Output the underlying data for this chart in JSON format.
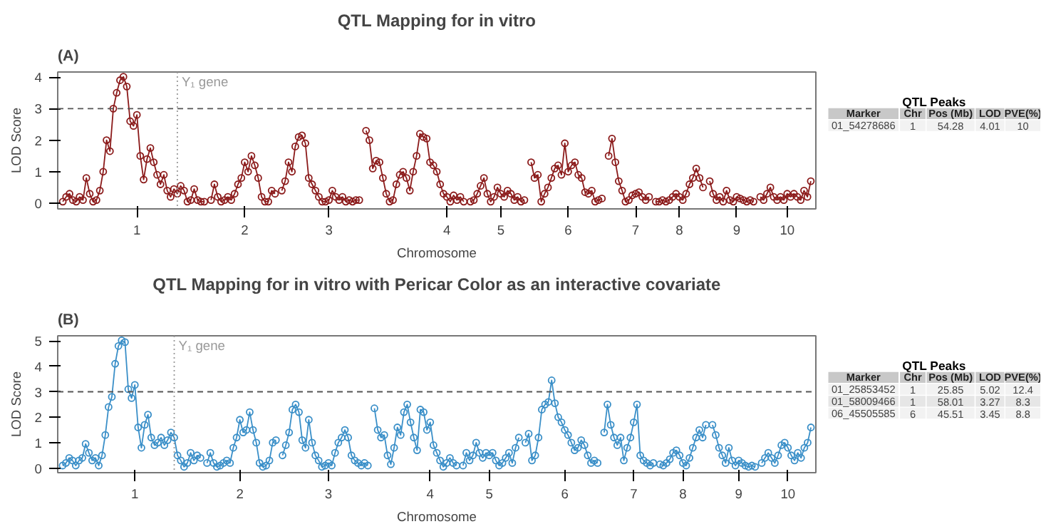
{
  "chart_data": [
    {
      "type": "line",
      "title": "QTL Mapping for in vitro",
      "annotations": [
        "(A)",
        "Y₁ gene"
      ],
      "xlabel": "Chromosome",
      "ylabel": "LOD Score",
      "marker": "circle",
      "line_style": "solid",
      "ylim": [
        -0.18,
        4.16
      ],
      "yticks": [
        0,
        1,
        2,
        3,
        4
      ],
      "categories": [
        null,
        null,
        null,
        null,
        null,
        null,
        null,
        null,
        null,
        null,
        null,
        null,
        null,
        null,
        null,
        null,
        null,
        null,
        null,
        null,
        null,
        null,
        "1",
        null,
        null,
        null,
        null,
        null,
        null,
        null,
        null,
        null,
        null,
        null,
        null,
        null,
        null,
        null,
        null,
        null,
        null,
        null,
        null,
        null,
        null,
        null,
        null,
        null,
        null,
        null,
        null,
        null,
        null,
        null,
        "2",
        null,
        null,
        null,
        null,
        null,
        null,
        null,
        null,
        null,
        null,
        null,
        null,
        null,
        null,
        null,
        null,
        null,
        null,
        null,
        null,
        null,
        null,
        null,
        null,
        "3",
        null,
        null,
        null,
        null,
        null,
        null,
        null,
        null,
        null,
        null,
        null,
        null,
        null,
        null,
        null,
        null,
        null,
        null,
        null,
        null,
        null,
        null,
        null,
        null,
        null,
        null,
        null,
        null,
        null,
        null,
        null,
        null,
        null,
        null,
        "4",
        null,
        null,
        null,
        null,
        null,
        null,
        null,
        null,
        null,
        null,
        null,
        null,
        null,
        null,
        null,
        "5",
        null,
        null,
        null,
        null,
        null,
        null,
        null,
        null,
        null,
        null,
        null,
        null,
        null,
        null,
        null,
        null,
        null,
        null,
        null,
        "6",
        null,
        null,
        null,
        null,
        null,
        null,
        null,
        null,
        null,
        null,
        null,
        null,
        null,
        null,
        null,
        null,
        null,
        null,
        null,
        "7",
        null,
        null,
        null,
        null,
        null,
        null,
        null,
        null,
        null,
        null,
        null,
        null,
        "8",
        null,
        null,
        null,
        null,
        null,
        null,
        null,
        null,
        null,
        null,
        null,
        null,
        null,
        null,
        null,
        null,
        "9",
        null,
        null,
        null,
        null,
        null,
        null,
        null,
        null,
        null,
        null,
        null,
        null,
        null,
        null,
        "10",
        null,
        null,
        null,
        null,
        null,
        null,
        null
      ],
      "ref_lines": [
        {
          "axis": "y",
          "value": 3,
          "label": null,
          "color": "#555555",
          "line_style": "dashed"
        }
      ],
      "series": [
        {
          "color": "#8b1a1a",
          "values": [
            0.05,
            0.2,
            0.3,
            0.1,
            0.05,
            0.2,
            0.1,
            0.8,
            0.3,
            0.05,
            0.1,
            0.4,
            1.0,
            2.0,
            1.65,
            3.0,
            3.5,
            3.9,
            4.01,
            3.7,
            2.6,
            2.45,
            2.8,
            1.5,
            0.75,
            1.4,
            1.75,
            1.3,
            0.9,
            0.6,
            0.9,
            0.4,
            0.2,
            0.45,
            0.3,
            0.55,
            0.4,
            0.05,
            0.1,
            0.45,
            0.1,
            0.05,
            0.05,
            null,
            0.1,
            0.6,
            0.2,
            0.05,
            0.1,
            0.2,
            0.1,
            0.3,
            0.6,
            0.8,
            1.3,
            1.0,
            1.5,
            1.2,
            0.8,
            0.2,
            0.05,
            0.05,
            0.4,
            0.3,
            null,
            0.4,
            0.7,
            1.3,
            1.0,
            1.8,
            2.1,
            2.15,
            1.9,
            0.8,
            0.6,
            0.4,
            0.2,
            0.05,
            0.05,
            0.1,
            0.4,
            0.2,
            0.1,
            0.2,
            0.05,
            0.1,
            0.05,
            0.1,
            0.1,
            null,
            2.3,
            2.0,
            1.1,
            1.35,
            1.3,
            0.8,
            0.3,
            0.05,
            0.1,
            0.6,
            0.9,
            1.0,
            0.8,
            0.4,
            1.0,
            1.5,
            2.2,
            2.1,
            2.05,
            1.3,
            1.2,
            1.0,
            0.6,
            0.3,
            0.2,
            0.05,
            0.25,
            0.1,
            0.2,
            0.05,
            null,
            0.05,
            0.1,
            0.3,
            0.55,
            0.8,
            0.3,
            0.05,
            0.2,
            0.5,
            0.3,
            0.2,
            0.4,
            0.3,
            0.1,
            0.2,
            0.05,
            0.1,
            null,
            1.3,
            0.8,
            0.9,
            0.05,
            0.3,
            0.5,
            0.8,
            1.1,
            1.2,
            0.9,
            1.9,
            1.0,
            1.2,
            1.3,
            0.9,
            0.8,
            0.35,
            0.3,
            0.4,
            0.05,
            0.1,
            0.15,
            null,
            1.5,
            2.05,
            1.3,
            0.7,
            0.4,
            0.05,
            0.1,
            0.25,
            0.3,
            0.35,
            0.2,
            0.1,
            0.2,
            null,
            0.05,
            0.05,
            0.1,
            0.05,
            0.1,
            0.2,
            0.3,
            0.2,
            0.1,
            0.3,
            0.6,
            0.8,
            1.1,
            0.8,
            0.5,
            null,
            0.7,
            0.3,
            0.1,
            0.2,
            0.05,
            0.4,
            0.1,
            0.05,
            0.2,
            0.15,
            0.1,
            0.05,
            0.1,
            0.05,
            null,
            0.2,
            0.1,
            0.3,
            0.5,
            0.2,
            0.1,
            0.2,
            0.1,
            0.3,
            0.2,
            0.3,
            0.2,
            0.1,
            0.4,
            0.2,
            0.7
          ]
        }
      ]
    },
    {
      "type": "other",
      "title": "QTL Peaks",
      "categories": [
        "Marker",
        "Chr",
        "Pos (Mb)",
        "LOD",
        "PVE(%)"
      ],
      "cell_labels": [
        [
          "01_54278686",
          "1",
          "54.28",
          "4.01",
          "10"
        ]
      ]
    },
    {
      "type": "line",
      "title": "QTL Mapping for in vitro with Pericar Color as an interactive covariate",
      "annotations": [
        "(B)",
        "Y₁ gene"
      ],
      "xlabel": "Chromosome",
      "ylabel": "LOD Score",
      "marker": "circle",
      "line_style": "solid",
      "ylim": [
        -0.18,
        5.2
      ],
      "yticks": [
        0,
        1,
        2,
        3,
        4,
        5
      ],
      "categories": [
        null,
        null,
        null,
        null,
        null,
        null,
        null,
        null,
        null,
        null,
        null,
        null,
        null,
        null,
        null,
        null,
        null,
        null,
        null,
        null,
        null,
        null,
        "1",
        null,
        null,
        null,
        null,
        null,
        null,
        null,
        null,
        null,
        null,
        null,
        null,
        null,
        null,
        null,
        null,
        null,
        null,
        null,
        null,
        null,
        null,
        null,
        null,
        null,
        null,
        null,
        null,
        null,
        null,
        null,
        "2",
        null,
        null,
        null,
        null,
        null,
        null,
        null,
        null,
        null,
        null,
        null,
        null,
        null,
        null,
        null,
        null,
        null,
        null,
        null,
        null,
        null,
        null,
        null,
        null,
        null,
        null,
        "3",
        null,
        null,
        null,
        null,
        null,
        null,
        null,
        null,
        null,
        null,
        null,
        null,
        null,
        null,
        null,
        null,
        null,
        null,
        null,
        null,
        null,
        null,
        null,
        null,
        null,
        null,
        null,
        null,
        null,
        null,
        "4",
        null,
        null,
        null,
        null,
        null,
        null,
        null,
        null,
        null,
        null,
        null,
        null,
        null,
        null,
        null,
        null,
        null,
        "5",
        null,
        null,
        null,
        null,
        null,
        null,
        null,
        null,
        null,
        null,
        null,
        null,
        null,
        null,
        null,
        null,
        null,
        null,
        null,
        null,
        null,
        null,
        "6",
        null,
        null,
        null,
        null,
        null,
        null,
        null,
        null,
        null,
        null,
        null,
        null,
        null,
        null,
        null,
        null,
        null,
        null,
        null,
        null,
        "7",
        null,
        null,
        null,
        null,
        null,
        null,
        null,
        null,
        null,
        null,
        null,
        null,
        null,
        null,
        "8",
        null,
        null,
        null,
        null,
        null,
        null,
        null,
        null,
        null,
        null,
        null,
        null,
        null,
        null,
        null,
        null,
        "9",
        null,
        null,
        null,
        null,
        null,
        null,
        null,
        null,
        null,
        null,
        null,
        null,
        null,
        null,
        "10",
        null,
        null,
        null,
        null,
        null,
        null,
        null
      ],
      "ref_lines": [
        {
          "axis": "y",
          "value": 3,
          "label": null,
          "color": "#555555",
          "line_style": "dashed"
        }
      ],
      "series": [
        {
          "color": "#3a8fc8",
          "values": [
            0.1,
            0.2,
            0.4,
            0.3,
            0.1,
            0.3,
            0.4,
            0.95,
            0.6,
            0.3,
            0.4,
            0.1,
            0.5,
            1.3,
            2.4,
            2.8,
            4.1,
            4.8,
            5.02,
            4.95,
            3.1,
            2.75,
            3.27,
            1.6,
            0.8,
            1.7,
            2.1,
            1.2,
            0.9,
            1.0,
            1.2,
            0.9,
            1.1,
            1.4,
            1.2,
            0.5,
            0.3,
            0.05,
            0.2,
            0.6,
            0.3,
            0.5,
            0.4,
            null,
            0.2,
            0.6,
            0.2,
            0.05,
            0.1,
            0.2,
            0.3,
            0.2,
            0.8,
            1.2,
            1.9,
            1.4,
            1.5,
            2.2,
            1.5,
            1.0,
            0.2,
            0.05,
            0.1,
            0.3,
            1.0,
            1.1,
            null,
            0.5,
            0.9,
            1.4,
            2.3,
            2.5,
            2.2,
            1.1,
            0.8,
            1.9,
            1.0,
            0.5,
            0.3,
            0.05,
            0.1,
            0.2,
            0.1,
            0.6,
            1.0,
            1.2,
            1.5,
            1.2,
            0.5,
            0.3,
            0.2,
            0.1,
            0.2,
            0.1,
            null,
            2.35,
            1.5,
            1.2,
            1.3,
            0.5,
            0.15,
            0.8,
            1.6,
            1.3,
            2.2,
            2.5,
            1.8,
            1.2,
            0.7,
            2.3,
            2.2,
            1.5,
            1.8,
            0.9,
            0.6,
            0.3,
            0.05,
            0.2,
            0.4,
            0.2,
            0.1,
            null,
            0.1,
            0.6,
            0.3,
            0.5,
            1.0,
            0.6,
            0.4,
            0.6,
            0.5,
            0.6,
            0.3,
            0.1,
            0.2,
            0.4,
            0.6,
            0.2,
            0.8,
            1.2,
            null,
            1.0,
            1.35,
            0.3,
            0.5,
            1.2,
            2.3,
            2.5,
            2.6,
            3.45,
            2.55,
            2.0,
            1.8,
            1.5,
            1.3,
            1.0,
            0.7,
            0.8,
            1.1,
            0.9,
            0.5,
            0.2,
            0.3,
            0.2,
            null,
            1.4,
            2.5,
            1.7,
            1.2,
            0.9,
            1.2,
            0.3,
            0.8,
            1.2,
            1.8,
            2.5,
            0.5,
            0.3,
            0.2,
            0.1,
            0.2,
            null,
            0.15,
            0.1,
            0.2,
            0.35,
            0.6,
            0.7,
            0.5,
            0.2,
            0.1,
            0.4,
            0.8,
            1.2,
            1.5,
            1.2,
            1.7,
            null,
            1.7,
            1.3,
            0.8,
            0.5,
            0.2,
            0.8,
            0.3,
            0.1,
            0.3,
            0.2,
            0.1,
            0.05,
            0.1,
            0.05,
            null,
            0.2,
            0.4,
            0.6,
            0.4,
            0.2,
            0.5,
            0.9,
            1.0,
            0.8,
            0.5,
            0.3,
            0.6,
            0.4,
            0.8,
            1.0,
            1.6
          ]
        }
      ]
    },
    {
      "type": "other",
      "title": "QTL Peaks",
      "categories": [
        "Marker",
        "Chr",
        "Pos (Mb)",
        "LOD",
        "PVE(%)"
      ],
      "cell_labels": [
        [
          "01_25853452",
          "1",
          "25.85",
          "5.02",
          "12.4"
        ],
        [
          "01_58009466",
          "1",
          "58.01",
          "3.27",
          "8.3"
        ],
        [
          "06_45505585",
          "6",
          "45.51",
          "3.45",
          "8.8"
        ]
      ]
    }
  ]
}
